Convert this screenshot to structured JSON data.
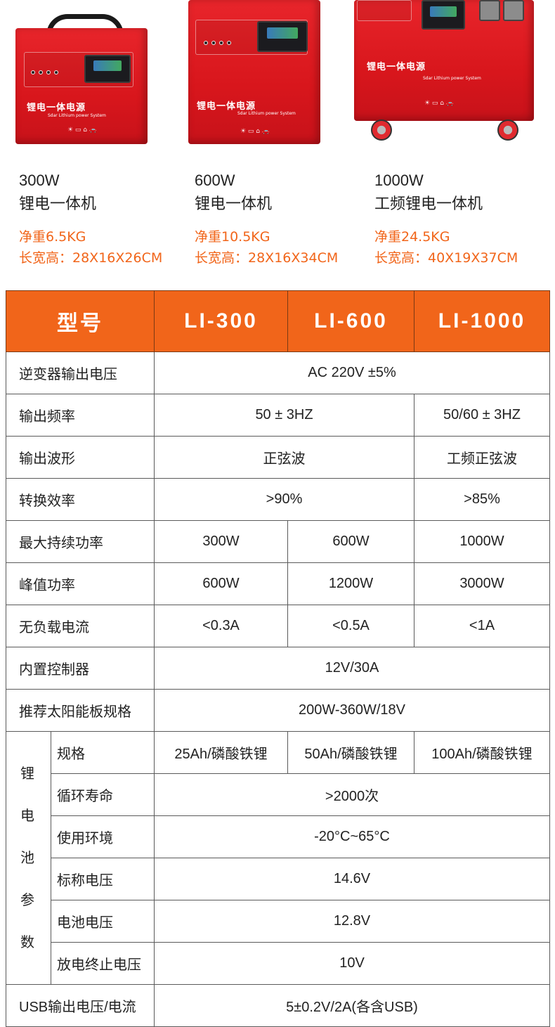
{
  "products": [
    {
      "power": "300W",
      "name": "锂电一体机",
      "weight": "净重6.5KG",
      "size": "长宽高：28X16X26CM",
      "brand_cn": "锂电一体电源",
      "brand_en": "Sdar Lithium power System"
    },
    {
      "power": "600W",
      "name": "锂电一体机",
      "weight": "净重10.5KG",
      "size": "长宽高：28X16X34CM",
      "brand_cn": "锂电一体电源",
      "brand_en": "Sdar Lithium power System"
    },
    {
      "power": "1000W",
      "name": "工频锂电一体机",
      "weight": "净重24.5KG",
      "size": "长宽高：40X19X37CM",
      "brand_cn": "锂电一体电源",
      "brand_en": "Sdar Lithium power System"
    }
  ],
  "table": {
    "header": {
      "model_label": "型号",
      "models": [
        "LI-300",
        "LI-600",
        "LI-1000"
      ]
    },
    "rows": {
      "output_voltage": {
        "label": "逆变器输出电压",
        "value": "AC  220V ±5%"
      },
      "output_freq": {
        "label": "输出频率",
        "v12": "50 ± 3HZ",
        "v3": "50/60 ± 3HZ"
      },
      "waveform": {
        "label": "输出波形",
        "v12": "正弦波",
        "v3": "工频正弦波"
      },
      "efficiency": {
        "label": "转换效率",
        "v12": ">90%",
        "v3": ">85%"
      },
      "max_power": {
        "label": "最大持续功率",
        "values": [
          "300W",
          "600W",
          "1000W"
        ]
      },
      "peak_power": {
        "label": "峰值功率",
        "values": [
          "600W",
          "1200W",
          "3000W"
        ]
      },
      "no_load": {
        "label": "无负载电流",
        "values": [
          "<0.3A",
          "<0.5A",
          "<1A"
        ]
      },
      "controller": {
        "label": "内置控制器",
        "value": "12V/30A"
      },
      "solar": {
        "label": "推荐太阳能板规格",
        "value": "200W-360W/18V"
      }
    },
    "battery": {
      "group_label": "锂电池参数",
      "spec": {
        "label": "规格",
        "values": [
          "25Ah/磷酸铁锂",
          "50Ah/磷酸铁锂",
          "100Ah/磷酸铁锂"
        ]
      },
      "cycle": {
        "label": "循环寿命",
        "value": ">2000次"
      },
      "env": {
        "label": "使用环境",
        "value": "-20°C~65°C"
      },
      "nominal": {
        "label": "标称电压",
        "value": "14.6V"
      },
      "voltage": {
        "label": "电池电压",
        "value": "12.8V"
      },
      "cutoff": {
        "label": "放电终止电压",
        "value": "10V"
      }
    },
    "usb": {
      "label": "USB输出电压/电流",
      "value": "5±0.2V/2A(各含USB)"
    }
  },
  "colors": {
    "accent": "#f1651a",
    "unit_red": "#e0242a"
  }
}
